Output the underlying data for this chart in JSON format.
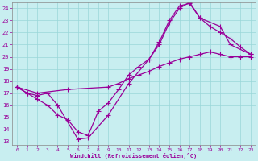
{
  "xlabel": "Windchill (Refroidissement éolien,°C)",
  "xlim": [
    -0.5,
    23.5
  ],
  "ylim": [
    12.7,
    24.5
  ],
  "yticks": [
    13,
    14,
    15,
    16,
    17,
    18,
    19,
    20,
    21,
    22,
    23,
    24
  ],
  "xticks": [
    0,
    1,
    2,
    3,
    4,
    5,
    6,
    7,
    8,
    9,
    10,
    11,
    12,
    13,
    14,
    15,
    16,
    17,
    18,
    19,
    20,
    21,
    22,
    23
  ],
  "bg_color": "#c8eef0",
  "line_color": "#990099",
  "grid_color": "#99d6d8",
  "curve1_x": [
    0,
    1,
    2,
    3,
    4,
    6,
    7,
    9,
    11,
    13,
    14,
    15,
    16,
    17,
    18,
    20,
    21,
    23
  ],
  "curve1_y": [
    17.5,
    17.0,
    16.8,
    17.0,
    16.0,
    13.2,
    13.3,
    15.2,
    17.8,
    19.8,
    21.2,
    23.0,
    24.2,
    24.4,
    23.2,
    22.5,
    21.0,
    20.2
  ],
  "curve2_x": [
    0,
    1,
    2,
    3,
    4,
    5,
    6,
    7,
    8,
    9,
    10,
    11,
    12,
    13,
    14,
    15,
    16,
    17,
    18,
    19,
    20,
    21,
    22,
    23
  ],
  "curve2_y": [
    17.5,
    17.0,
    16.5,
    16.0,
    15.2,
    14.8,
    13.8,
    13.5,
    15.5,
    16.2,
    17.3,
    18.5,
    19.2,
    19.8,
    21.0,
    22.8,
    24.0,
    24.5,
    23.2,
    22.5,
    22.0,
    21.5,
    20.8,
    20.2
  ],
  "curve3_x": [
    0,
    2,
    5,
    9,
    10,
    11,
    12,
    13,
    14,
    15,
    16,
    17,
    18,
    19,
    20,
    21,
    22,
    23
  ],
  "curve3_y": [
    17.5,
    17.0,
    17.3,
    17.5,
    17.8,
    18.2,
    18.5,
    18.8,
    19.2,
    19.5,
    19.8,
    20.0,
    20.2,
    20.4,
    20.2,
    20.0,
    20.0,
    20.0
  ]
}
